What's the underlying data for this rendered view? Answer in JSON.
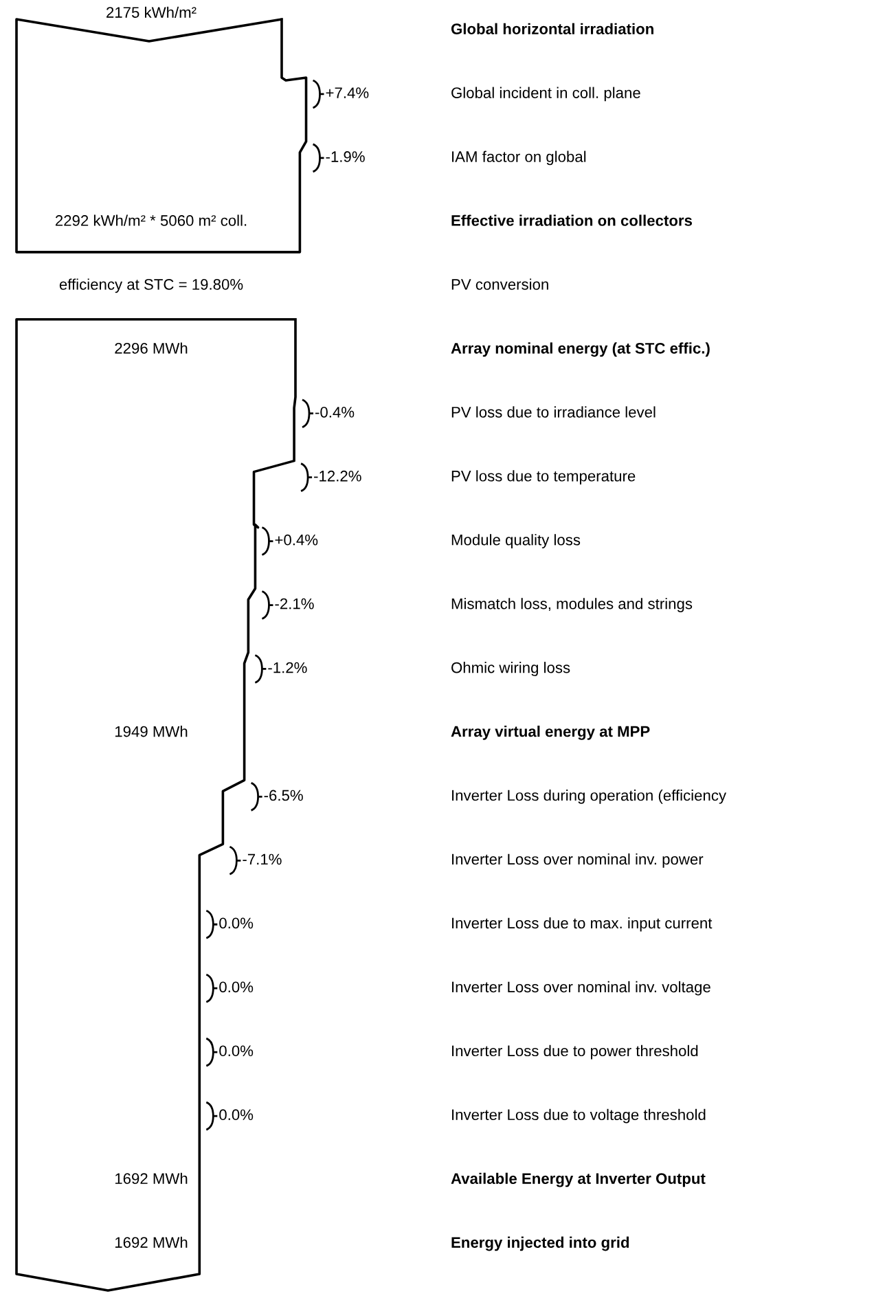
{
  "chart_data": {
    "type": "other",
    "categories": [
      "Global horizontal irradiation",
      "Global incident in coll. plane",
      "IAM factor on global",
      "Effective irradiation on collectors",
      "PV conversion",
      "Array nominal energy (at STC effic.)",
      "PV loss due to irradiance level",
      "PV loss due to temperature",
      "Module quality loss",
      "Mismatch loss, modules and strings",
      "Ohmic wiring loss",
      "Array virtual energy at MPP",
      "Inverter Loss during operation (efficiency",
      "Inverter Loss over nominal inv. power",
      "Inverter Loss due to max. input current",
      "Inverter Loss over nominal inv. voltage",
      "Inverter Loss due to power threshold",
      "Inverter Loss due to voltage threshold",
      "Available Energy at Inverter Output",
      "Energy injected into grid"
    ],
    "values": [
      null,
      7.4,
      -1.9,
      null,
      null,
      null,
      -0.4,
      -12.2,
      0.4,
      -2.1,
      -1.2,
      null,
      -6.5,
      -7.1,
      0.0,
      0.0,
      0.0,
      0.0,
      null,
      null
    ],
    "value_labels": [
      "2175 kWh/m²",
      "+7.4%",
      "-1.9%",
      "2292 kWh/m² * 5060 m² coll.",
      "efficiency at STC = 19.80%",
      "2296 MWh",
      "-0.4%",
      "-12.2%",
      "+0.4%",
      "-2.1%",
      "-1.2%",
      "1949 MWh",
      "-6.5%",
      "-7.1%",
      "0.0%",
      "0.0%",
      "0.0%",
      "0.0%",
      "1692 MWh",
      "1692 MWh"
    ]
  }
}
